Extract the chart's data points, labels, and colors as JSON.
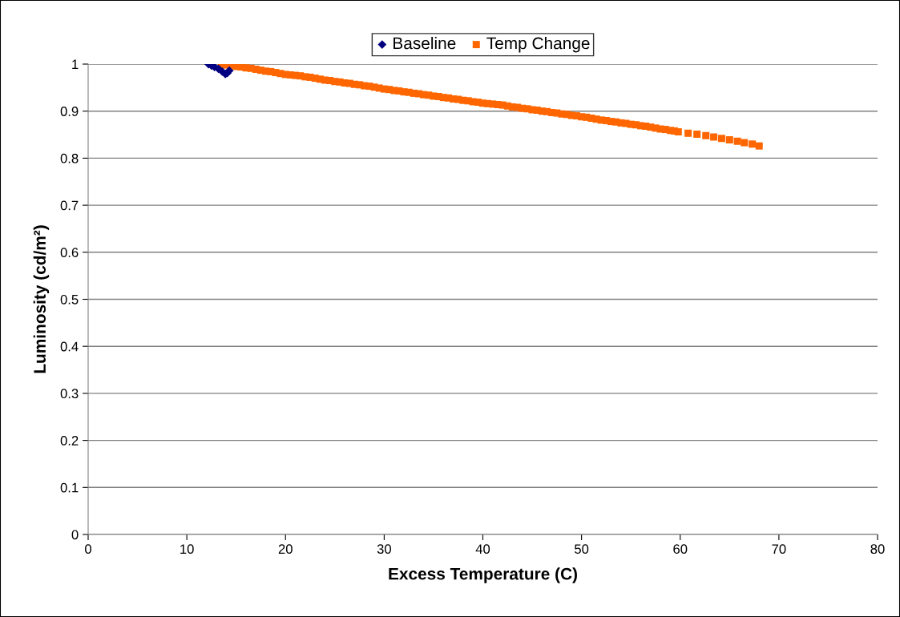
{
  "chart_data": {
    "type": "scatter",
    "xlabel": "Excess Temperature (C)",
    "ylabel": "Luminosity (cd/m²)",
    "xlim": [
      0,
      80
    ],
    "xticks": [
      0,
      10,
      20,
      30,
      40,
      50,
      60,
      70,
      80
    ],
    "ylim": [
      0,
      1
    ],
    "yticks": [
      0,
      0.1,
      0.2,
      0.3,
      0.4,
      0.5,
      0.6,
      0.7,
      0.8,
      0.9,
      1
    ],
    "grid": "y",
    "legend": "top",
    "series": [
      {
        "name": "Baseline",
        "color": "#000080",
        "marker": "diamond",
        "x": [
          12.2,
          12.5,
          12.8,
          13.2,
          13.6,
          13.9,
          14.1,
          14.3
        ],
        "values": [
          1.0,
          0.997,
          0.994,
          0.99,
          0.984,
          0.979,
          0.981,
          0.986
        ]
      },
      {
        "name": "Temp Change",
        "color": "#ff6600",
        "marker": "square",
        "x": [
          13.5,
          14,
          14.5,
          15,
          15.5,
          16,
          16.5,
          17,
          17.5,
          18,
          18.5,
          19,
          19.5,
          20,
          20.5,
          21,
          21.5,
          22,
          22.5,
          23,
          23.5,
          24,
          24.5,
          25,
          25.5,
          26,
          26.5,
          27,
          27.5,
          28,
          28.5,
          29,
          29.5,
          30,
          30.5,
          31,
          31.5,
          32,
          32.5,
          33,
          33.5,
          34,
          34.5,
          35,
          35.5,
          36,
          36.5,
          37,
          37.5,
          38,
          38.5,
          39,
          39.5,
          40,
          40.5,
          41,
          41.5,
          42,
          42.5,
          43,
          43.5,
          44,
          44.5,
          45,
          45.5,
          46,
          46.5,
          47,
          47.5,
          48,
          48.5,
          49,
          49.5,
          50,
          50.5,
          51,
          51.5,
          52,
          52.5,
          53,
          53.5,
          54,
          54.5,
          55,
          55.5,
          56,
          56.5,
          57,
          57.5,
          58,
          58.5,
          59,
          59.4,
          59.8,
          60.8,
          61.7,
          62.6,
          63.4,
          64.2,
          65,
          65.8,
          66.5,
          67.3,
          68
        ],
        "values": [
          0.999,
          0.998,
          0.997,
          0.995,
          0.994,
          0.992,
          0.991,
          0.989,
          0.987,
          0.985,
          0.984,
          0.982,
          0.98,
          0.978,
          0.977,
          0.976,
          0.975,
          0.973,
          0.972,
          0.97,
          0.968,
          0.966,
          0.965,
          0.963,
          0.962,
          0.96,
          0.959,
          0.957,
          0.956,
          0.954,
          0.953,
          0.951,
          0.949,
          0.947,
          0.946,
          0.944,
          0.943,
          0.941,
          0.94,
          0.938,
          0.937,
          0.935,
          0.934,
          0.932,
          0.931,
          0.929,
          0.928,
          0.926,
          0.925,
          0.923,
          0.922,
          0.92,
          0.919,
          0.917,
          0.916,
          0.915,
          0.914,
          0.913,
          0.911,
          0.909,
          0.908,
          0.906,
          0.905,
          0.903,
          0.902,
          0.9,
          0.899,
          0.897,
          0.896,
          0.894,
          0.893,
          0.891,
          0.89,
          0.888,
          0.887,
          0.885,
          0.883,
          0.881,
          0.88,
          0.878,
          0.877,
          0.875,
          0.874,
          0.872,
          0.871,
          0.869,
          0.868,
          0.866,
          0.864,
          0.862,
          0.861,
          0.859,
          0.858,
          0.856,
          0.853,
          0.851,
          0.848,
          0.845,
          0.842,
          0.839,
          0.836,
          0.833,
          0.83,
          0.826
        ]
      }
    ]
  }
}
